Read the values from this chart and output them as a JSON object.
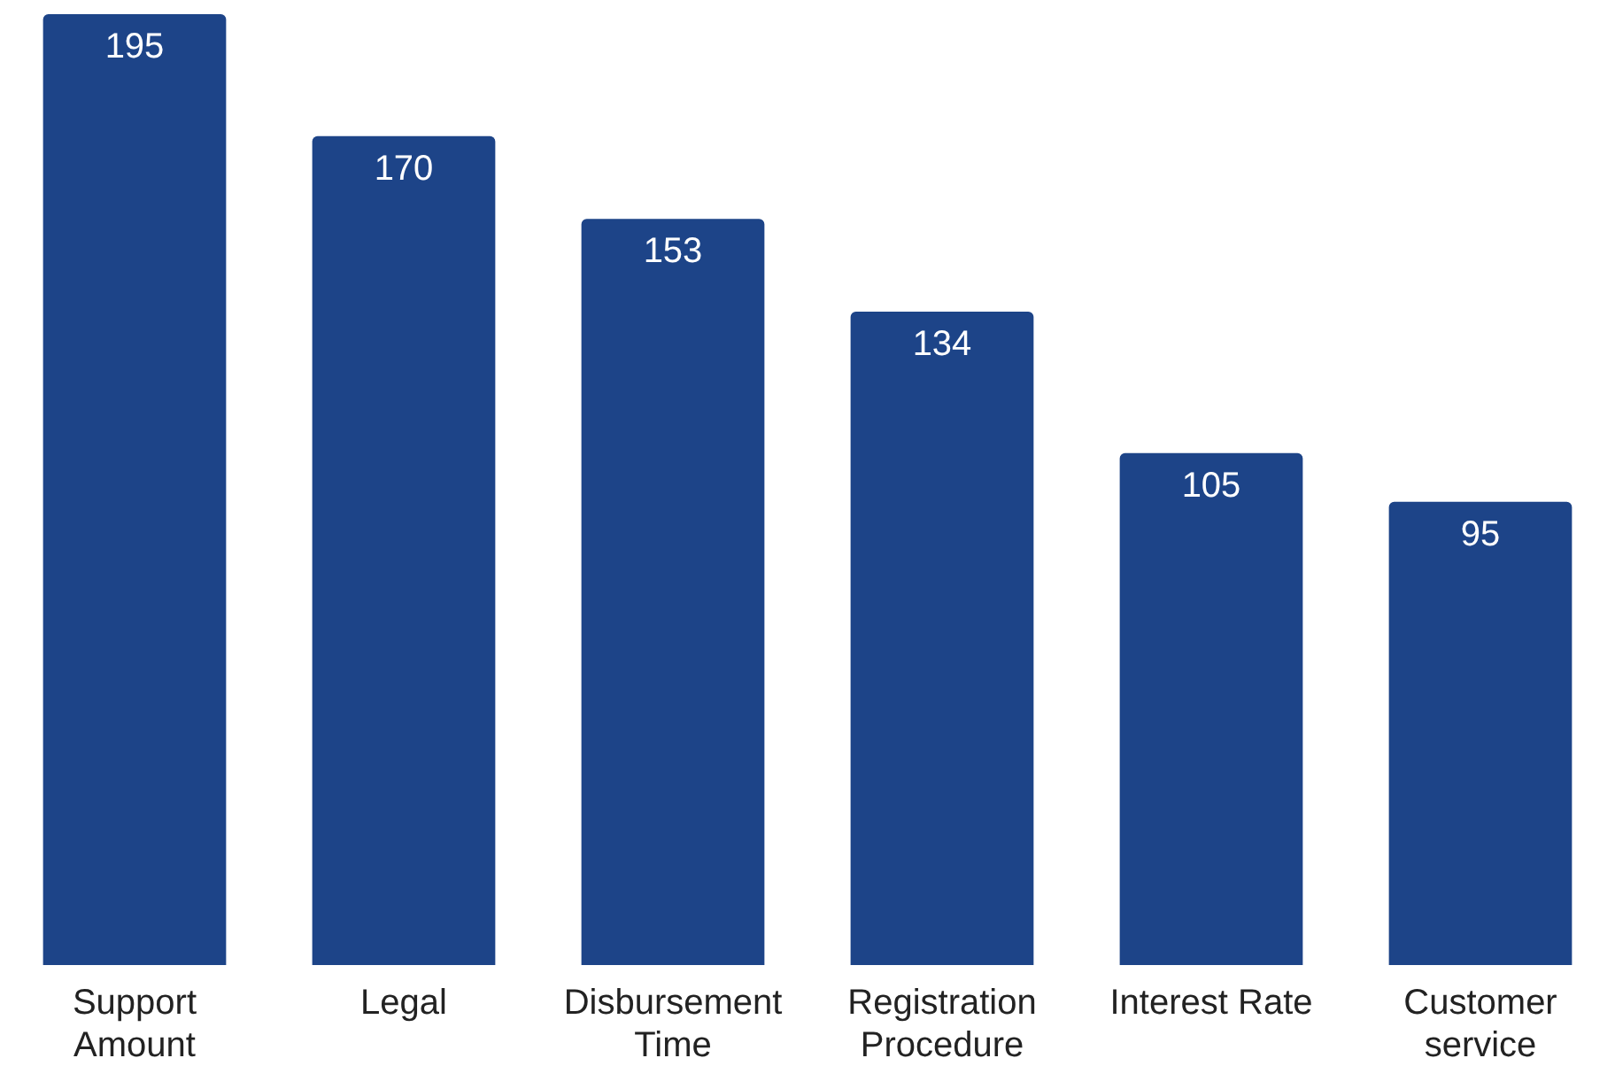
{
  "chart_data": {
    "type": "bar",
    "categories": [
      "Support Amount",
      "Legal",
      "Disbursement Time",
      "Registration Procedure",
      "Interest Rate",
      "Customer service"
    ],
    "values": [
      195,
      170,
      153,
      134,
      105,
      95
    ],
    "color": "#1d4488",
    "data_labels": true,
    "grid": false,
    "legend": false
  }
}
